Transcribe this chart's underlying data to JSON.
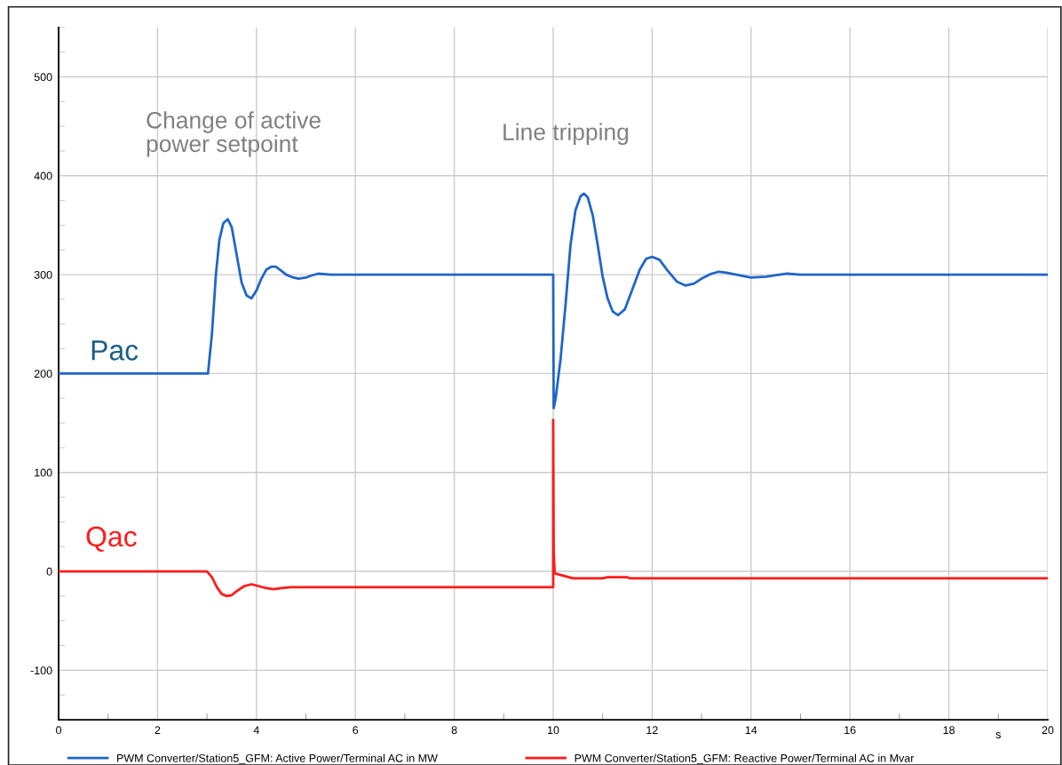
{
  "chart_data": {
    "type": "line",
    "xlabel": "s",
    "xlim": [
      0,
      20
    ],
    "xticks": [
      0,
      2,
      4,
      6,
      8,
      10,
      12,
      14,
      16,
      18,
      20
    ],
    "ylim": [
      -150,
      550
    ],
    "yticks": [
      -100,
      0,
      100,
      200,
      300,
      400,
      500
    ],
    "grid": true,
    "legend": "bottom",
    "line_style": "solid",
    "marker": "none",
    "series": [
      {
        "name": "PWM Converter/Station5_GFM: Active Power/Terminal AC in MW",
        "color": "#1f66c8",
        "x": [
          0,
          3.02,
          3.1,
          3.18,
          3.25,
          3.33,
          3.42,
          3.5,
          3.6,
          3.7,
          3.8,
          3.9,
          4.0,
          4.1,
          4.2,
          4.3,
          4.39,
          4.5,
          4.6,
          4.75,
          4.85,
          5.0,
          5.1,
          5.25,
          5.5,
          10.0,
          10.01,
          10.05,
          10.15,
          10.25,
          10.35,
          10.45,
          10.55,
          10.62,
          10.7,
          10.8,
          10.9,
          11.0,
          11.1,
          11.2,
          11.31,
          11.45,
          11.6,
          11.75,
          11.88,
          12.0,
          12.15,
          12.3,
          12.5,
          12.67,
          12.85,
          13.0,
          13.2,
          13.35,
          13.5,
          13.7,
          14.0,
          14.3,
          14.73,
          15.0,
          20
        ],
        "values": [
          200,
          200,
          240,
          300,
          335,
          352,
          356,
          348,
          320,
          292,
          279,
          276,
          284,
          296,
          305,
          308,
          308,
          304,
          300,
          297,
          296,
          297,
          299,
          301,
          300,
          300,
          165,
          175,
          215,
          270,
          330,
          365,
          379,
          382,
          378,
          360,
          330,
          298,
          276,
          263,
          259,
          265,
          285,
          305,
          316,
          318,
          315,
          305,
          293,
          289,
          291,
          296,
          301,
          303,
          302,
          300,
          297,
          298,
          301,
          300,
          300
        ]
      },
      {
        "name": "PWM Converter/Station5_GFM: Reactive Power/Terminal AC in Mvar",
        "color": "#ff1a1a",
        "x": [
          0,
          3.0,
          3.1,
          3.2,
          3.3,
          3.4,
          3.5,
          3.6,
          3.75,
          3.9,
          4.05,
          4.2,
          4.35,
          4.5,
          4.7,
          5.0,
          5.5,
          10.0,
          10.0,
          10.01,
          10.03,
          10.1,
          10.25,
          10.4,
          10.5,
          11.0,
          11.1,
          11.5,
          11.55,
          20
        ],
        "values": [
          0,
          0,
          -6,
          -16,
          -23,
          -25,
          -24,
          -20,
          -15,
          -13,
          -15,
          -17,
          -18,
          -17,
          -16,
          -16,
          -16,
          -16,
          153,
          20,
          -2,
          -3,
          -5,
          -7,
          -7,
          -7,
          -6,
          -6,
          -7,
          -7
        ]
      }
    ],
    "annotations": [
      "Change of active\npower setpoint",
      "Line tripping",
      "Pac",
      "Qac"
    ]
  }
}
